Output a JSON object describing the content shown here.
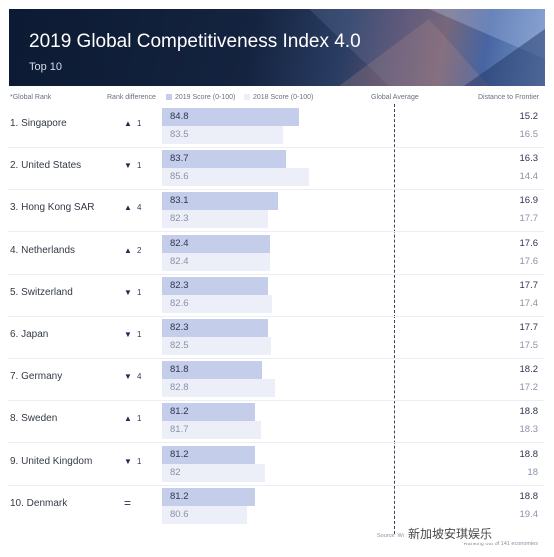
{
  "banner": {
    "title": "2019 Global Competitiveness Index 4.0",
    "subtitle": "Top 10"
  },
  "headers": {
    "global_rank": "*Global Rank",
    "rank_difference": "Rank difference",
    "score_2019": "2019 Score (0-100)",
    "score_2018": "2018 Score (0-100)",
    "global_average": "Global Average",
    "distance": "Distance to Frontier"
  },
  "colors": {
    "bar_2019": "#c4cdea",
    "bar_2018": "#eceef8",
    "text_dark": "#1c2a55"
  },
  "chart_data": {
    "type": "bar",
    "title": "2019 Global Competitiveness Index 4.0",
    "subtitle": "Top 10",
    "categories": [
      "Singapore",
      "United States",
      "Hong Kong SAR",
      "Netherlands",
      "Switzerland",
      "Japan",
      "Germany",
      "Sweden",
      "United Kingdom",
      "Denmark"
    ],
    "rows": [
      {
        "label": "1. Singapore",
        "change_dir": "up",
        "change": "1",
        "score2019": "84.8",
        "score2018": "83.5",
        "dist2019": "15.2",
        "dist2018": "16.5"
      },
      {
        "label": "2. United States",
        "change_dir": "down",
        "change": "1",
        "score2019": "83.7",
        "score2018": "85.6",
        "dist2019": "16.3",
        "dist2018": "14.4"
      },
      {
        "label": "3. Hong Kong SAR",
        "change_dir": "up",
        "change": "4",
        "score2019": "83.1",
        "score2018": "82.3",
        "dist2019": "16.9",
        "dist2018": "17.7"
      },
      {
        "label": "4. Netherlands",
        "change_dir": "up",
        "change": "2",
        "score2019": "82.4",
        "score2018": "82.4",
        "dist2019": "17.6",
        "dist2018": "17.6"
      },
      {
        "label": "5. Switzerland",
        "change_dir": "down",
        "change": "1",
        "score2019": "82.3",
        "score2018": "82.6",
        "dist2019": "17.7",
        "dist2018": "17.4"
      },
      {
        "label": "6. Japan",
        "change_dir": "down",
        "change": "1",
        "score2019": "82.3",
        "score2018": "82.5",
        "dist2019": "17.7",
        "dist2018": "17.5"
      },
      {
        "label": "7. Germany",
        "change_dir": "down",
        "change": "4",
        "score2019": "81.8",
        "score2018": "82.8",
        "dist2019": "18.2",
        "dist2018": "17.2"
      },
      {
        "label": "8. Sweden",
        "change_dir": "up",
        "change": "1",
        "score2019": "81.2",
        "score2018": "81.7",
        "dist2019": "18.8",
        "dist2018": "18.3"
      },
      {
        "label": "9. United Kingdom",
        "change_dir": "down",
        "change": "1",
        "score2019": "81.2",
        "score2018": "82",
        "dist2019": "18.8",
        "dist2018": "18"
      },
      {
        "label": "10. Denmark",
        "change_dir": "same",
        "change": "=",
        "score2019": "81.2",
        "score2018": "80.6",
        "dist2019": "18.8",
        "dist2018": "19.4"
      }
    ],
    "series": [
      {
        "name": "2019 Score (0-100)",
        "values": [
          84.8,
          83.7,
          83.1,
          82.4,
          82.3,
          82.3,
          81.8,
          81.2,
          81.2,
          81.2
        ]
      },
      {
        "name": "2018 Score (0-100)",
        "values": [
          83.5,
          85.6,
          82.3,
          82.4,
          82.6,
          82.5,
          82.8,
          81.7,
          82,
          80.6
        ]
      }
    ],
    "xlim": [
      0,
      100
    ]
  },
  "footer": {
    "source": "Source: World Economic Forum",
    "note": "*Ranking out of 141 economies",
    "watermark": "新加坡安琪娱乐"
  }
}
